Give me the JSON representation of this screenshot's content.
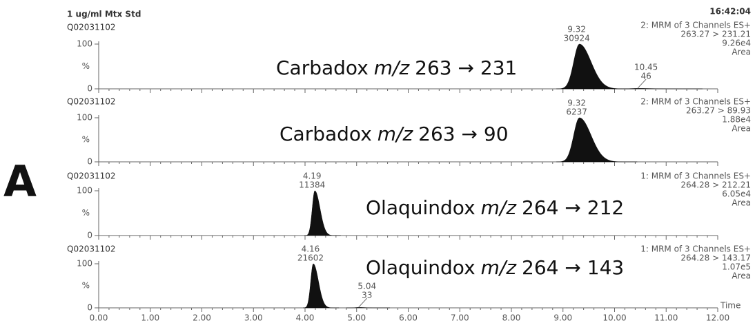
{
  "header": {
    "title": "1 ug/ml Mtx Std",
    "time": "16:42:04",
    "panel_letter": "A"
  },
  "chart_data": [
    {
      "type": "chromatogram",
      "sample": "Q02031102",
      "channel": "2: MRM of 3 Channels ES+",
      "transition": "263.27 > 231.21",
      "intensity": "9.26e4",
      "mode": "Area",
      "compound": "Carbadox",
      "mz_label": "m/z",
      "ion_label": "263 → 231",
      "y_label": "%",
      "ylim": [
        0,
        100
      ],
      "yticks": [
        0,
        100
      ],
      "peaks": [
        {
          "rt": 9.32,
          "area": 30924,
          "height": 100
        },
        {
          "rt": 10.45,
          "area": 46,
          "height": 1
        }
      ]
    },
    {
      "type": "chromatogram",
      "sample": "Q02031102",
      "channel": "2: MRM of 3 Channels ES+",
      "transition": "263.27 > 89.93",
      "intensity": "1.88e4",
      "mode": "Area",
      "compound": "Carbadox",
      "mz_label": "m/z",
      "ion_label": "263 → 90",
      "y_label": "%",
      "ylim": [
        0,
        100
      ],
      "yticks": [
        0,
        100
      ],
      "peaks": [
        {
          "rt": 9.32,
          "area": 6237,
          "height": 100
        }
      ]
    },
    {
      "type": "chromatogram",
      "sample": "Q02031102",
      "channel": "1: MRM of 3 Channels ES+",
      "transition": "264.28 > 212.21",
      "intensity": "6.05e4",
      "mode": "Area",
      "compound": "Olaquindox",
      "mz_label": "m/z",
      "ion_label": "264 → 212",
      "y_label": "%",
      "ylim": [
        0,
        100
      ],
      "yticks": [
        0,
        100
      ],
      "peaks": [
        {
          "rt": 4.19,
          "area": 11384,
          "height": 100
        }
      ]
    },
    {
      "type": "chromatogram",
      "sample": "Q02031102",
      "channel": "1: MRM of 3 Channels ES+",
      "transition": "264.28 > 143.17",
      "intensity": "1.07e5",
      "mode": "Area",
      "compound": "Olaquindox",
      "mz_label": "m/z",
      "ion_label": "264 → 143",
      "y_label": "%",
      "ylim": [
        0,
        100
      ],
      "yticks": [
        0,
        100
      ],
      "peaks": [
        {
          "rt": 4.16,
          "area": 21602,
          "height": 100
        },
        {
          "rt": 5.04,
          "area": 33,
          "height": 1
        }
      ],
      "x_label": "Time",
      "xlim": [
        0,
        12
      ],
      "xticks": [
        {
          "value": 0,
          "label": "0.00"
        },
        {
          "value": 1,
          "label": "1.00"
        },
        {
          "value": 2,
          "label": "2.00"
        },
        {
          "value": 3,
          "label": "3.00"
        },
        {
          "value": 4,
          "label": "4.00"
        },
        {
          "value": 5,
          "label": "5.00"
        },
        {
          "value": 6,
          "label": "6.00"
        },
        {
          "value": 7,
          "label": "7.00"
        },
        {
          "value": 8,
          "label": "8.00"
        },
        {
          "value": 9,
          "label": "9.00"
        },
        {
          "value": 10,
          "label": "10.00"
        },
        {
          "value": 11,
          "label": "11.00"
        },
        {
          "value": 12,
          "label": "12.00"
        }
      ]
    }
  ]
}
